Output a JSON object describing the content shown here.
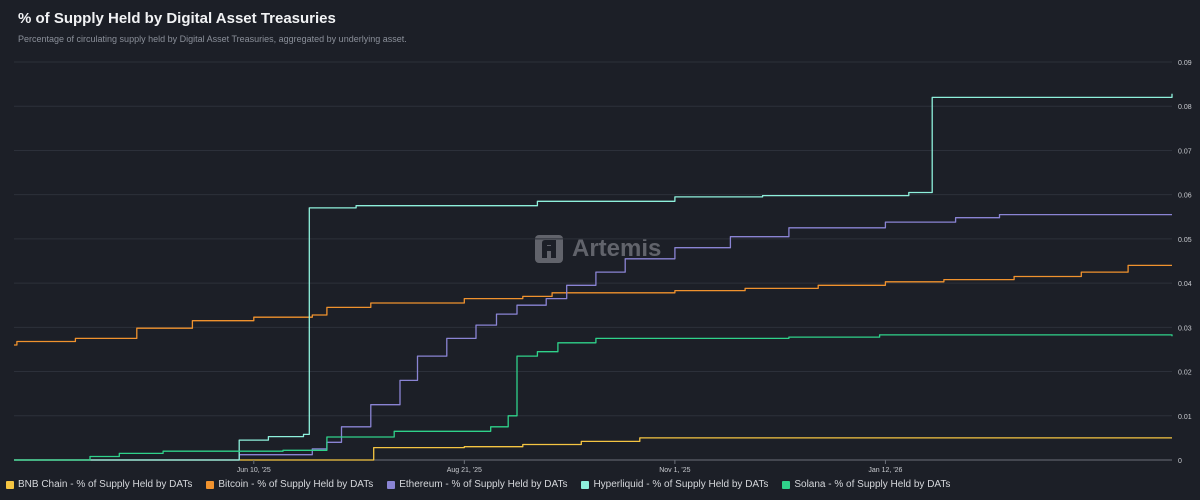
{
  "header": {
    "title": "% of Supply Held by Digital Asset Treasuries",
    "subtitle": "Percentage of circulating supply held by Digital Asset Treasuries, aggregated by underlying asset."
  },
  "watermark": {
    "text": "Artemis",
    "icon": "artemis-logo-icon"
  },
  "chart_data": {
    "type": "line",
    "title": "% of Supply Held by Digital Asset Treasuries",
    "subtitle": "Percentage of circulating supply held by Digital Asset Treasuries, aggregated by underlying asset.",
    "xlabel": "",
    "ylabel": "",
    "x_ticks": [
      "Jun 10, '25",
      "Aug 21, '25",
      "Nov 1, '25",
      "Jan 12, '26"
    ],
    "x_range": [
      "2025-03-20",
      "2026-04-20"
    ],
    "y_ticks": [
      "0",
      "0.01",
      "0.02",
      "0.03",
      "0.04",
      "0.05",
      "0.06",
      "0.07",
      "0.08",
      "0.09"
    ],
    "ylim": [
      0,
      0.09
    ],
    "grid": "horizontal",
    "legend_position": "bottom",
    "series": [
      {
        "name": "BNB Chain - % of Supply Held by DATs",
        "color": "#f5c542",
        "step": true,
        "points": [
          [
            "2025-03-20",
            0
          ],
          [
            "2025-07-20",
            0
          ],
          [
            "2025-07-21",
            0.0028
          ],
          [
            "2025-08-21",
            0.003
          ],
          [
            "2025-09-10",
            0.0035
          ],
          [
            "2025-09-30",
            0.0042
          ],
          [
            "2025-10-20",
            0.005
          ],
          [
            "2026-04-20",
            0.005
          ]
        ]
      },
      {
        "name": "Bitcoin - % of Supply Held by DATs",
        "color": "#f0922e",
        "step": true,
        "points": [
          [
            "2025-03-20",
            0.026
          ],
          [
            "2025-03-21",
            0.0268
          ],
          [
            "2025-04-10",
            0.0275
          ],
          [
            "2025-05-01",
            0.0298
          ],
          [
            "2025-05-20",
            0.0315
          ],
          [
            "2025-06-10",
            0.0323
          ],
          [
            "2025-06-30",
            0.0328
          ],
          [
            "2025-07-05",
            0.0345
          ],
          [
            "2025-07-20",
            0.0355
          ],
          [
            "2025-08-21",
            0.0365
          ],
          [
            "2025-09-10",
            0.037
          ],
          [
            "2025-09-20",
            0.0378
          ],
          [
            "2025-11-01",
            0.0383
          ],
          [
            "2025-11-25",
            0.0388
          ],
          [
            "2025-12-20",
            0.0395
          ],
          [
            "2026-01-12",
            0.0403
          ],
          [
            "2026-02-01",
            0.0408
          ],
          [
            "2026-02-25",
            0.0415
          ],
          [
            "2026-03-20",
            0.0425
          ],
          [
            "2026-04-05",
            0.044
          ],
          [
            "2026-04-20",
            0.044
          ]
        ]
      },
      {
        "name": "Ethereum - % of Supply Held by DATs",
        "color": "#8a84d4",
        "step": true,
        "points": [
          [
            "2025-03-20",
            0
          ],
          [
            "2025-06-01",
            0
          ],
          [
            "2025-06-05",
            0.0012
          ],
          [
            "2025-06-30",
            0.0025
          ],
          [
            "2025-07-05",
            0.004
          ],
          [
            "2025-07-10",
            0.0075
          ],
          [
            "2025-07-20",
            0.0125
          ],
          [
            "2025-07-30",
            0.018
          ],
          [
            "2025-08-05",
            0.0235
          ],
          [
            "2025-08-15",
            0.0275
          ],
          [
            "2025-08-25",
            0.0305
          ],
          [
            "2025-09-01",
            0.033
          ],
          [
            "2025-09-08",
            0.035
          ],
          [
            "2025-09-18",
            0.0365
          ],
          [
            "2025-09-25",
            0.0395
          ],
          [
            "2025-10-05",
            0.0425
          ],
          [
            "2025-10-15",
            0.0455
          ],
          [
            "2025-11-01",
            0.048
          ],
          [
            "2025-11-20",
            0.0505
          ],
          [
            "2025-12-10",
            0.0525
          ],
          [
            "2026-01-12",
            0.0538
          ],
          [
            "2026-02-05",
            0.0548
          ],
          [
            "2026-02-20",
            0.0555
          ],
          [
            "2026-04-20",
            0.0555
          ]
        ]
      },
      {
        "name": "Hyperliquid - % of Supply Held by DATs",
        "color": "#8ef0dc",
        "step": true,
        "points": [
          [
            "2025-03-20",
            0
          ],
          [
            "2025-06-03",
            0
          ],
          [
            "2025-06-05",
            0.0045
          ],
          [
            "2025-06-15",
            0.0053
          ],
          [
            "2025-06-27",
            0.0058
          ],
          [
            "2025-06-29",
            0.057
          ],
          [
            "2025-07-15",
            0.0575
          ],
          [
            "2025-09-15",
            0.0585
          ],
          [
            "2025-11-01",
            0.0595
          ],
          [
            "2025-12-01",
            0.0598
          ],
          [
            "2026-01-20",
            0.0605
          ],
          [
            "2026-01-28",
            0.082
          ],
          [
            "2026-04-20",
            0.0828
          ]
        ]
      },
      {
        "name": "Solana - % of Supply Held by DATs",
        "color": "#2fd28a",
        "step": true,
        "points": [
          [
            "2025-03-20",
            0
          ],
          [
            "2025-04-10",
            0
          ],
          [
            "2025-04-15",
            0.0008
          ],
          [
            "2025-04-25",
            0.0015
          ],
          [
            "2025-05-10",
            0.002
          ],
          [
            "2025-06-20",
            0.0022
          ],
          [
            "2025-07-05",
            0.0052
          ],
          [
            "2025-07-28",
            0.0065
          ],
          [
            "2025-08-30",
            0.0075
          ],
          [
            "2025-09-05",
            0.01
          ],
          [
            "2025-09-08",
            0.0235
          ],
          [
            "2025-09-15",
            0.0245
          ],
          [
            "2025-09-22",
            0.0265
          ],
          [
            "2025-10-05",
            0.0275
          ],
          [
            "2025-12-10",
            0.0278
          ],
          [
            "2026-01-10",
            0.0283
          ],
          [
            "2026-04-20",
            0.028
          ]
        ]
      }
    ]
  }
}
